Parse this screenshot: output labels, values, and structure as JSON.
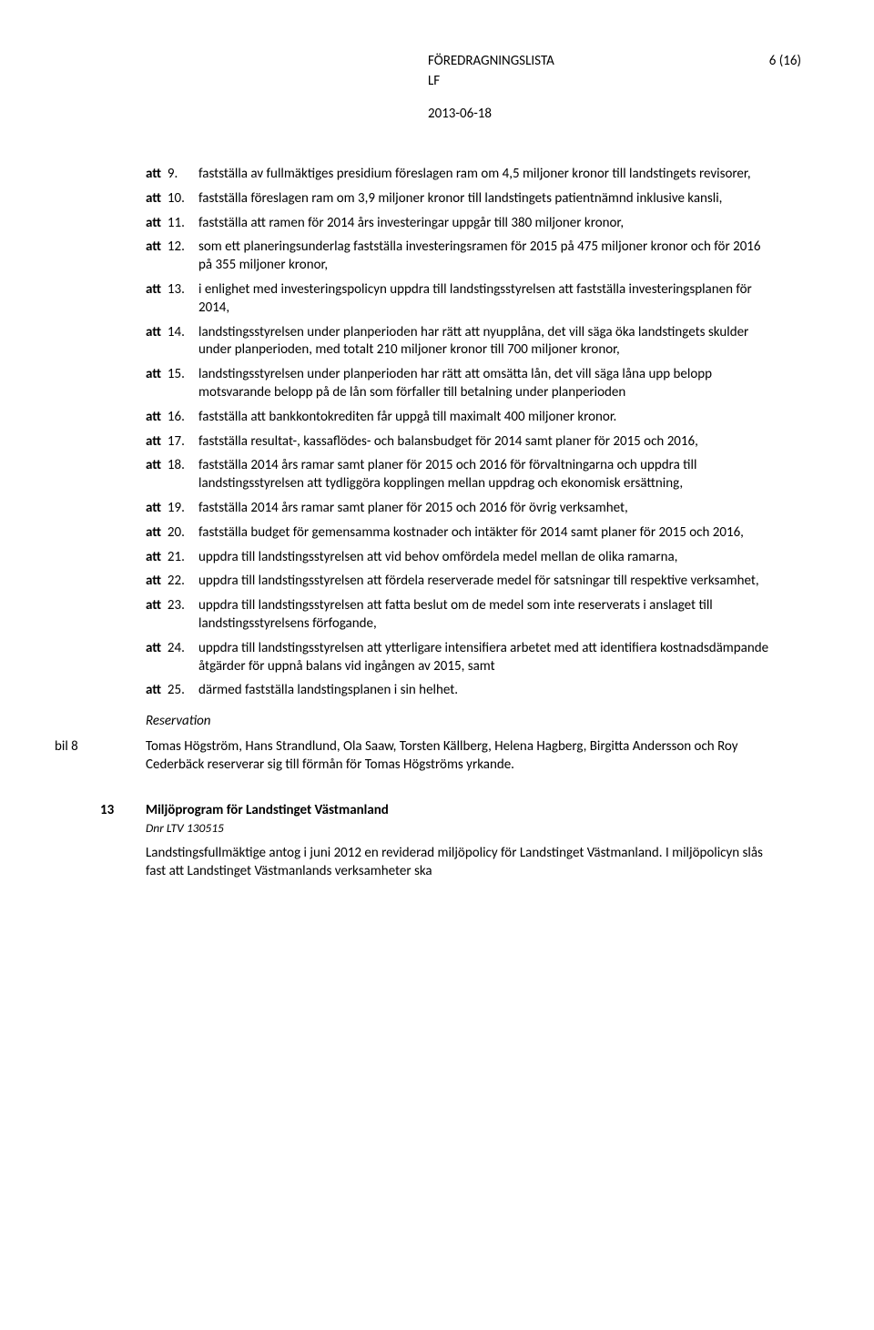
{
  "header": {
    "title": "FÖREDRAGNINGSLISTA",
    "pageinfo": "6 (16)",
    "lf": "LF",
    "date": "2013-06-18"
  },
  "att_items": [
    {
      "num": "9.",
      "text": "fastställa av fullmäktiges presidium föreslagen ram om 4,5 miljoner kronor till landstingets revisorer,"
    },
    {
      "num": "10.",
      "text": "fastställa föreslagen ram om 3,9 miljoner kronor till landstingets patientnämnd inklusive kansli,"
    },
    {
      "num": "11.",
      "text": "fastställa att ramen för 2014 års investeringar uppgår till 380 miljoner kronor,"
    },
    {
      "num": "12.",
      "text": "som ett planeringsunderlag fastställa investeringsramen för 2015 på 475 miljoner kronor och för 2016 på 355 miljoner kronor,"
    },
    {
      "num": "13.",
      "text": "i enlighet med investeringspolicyn uppdra till landstingsstyrelsen att fastställa investeringsplanen för 2014,"
    },
    {
      "num": "14.",
      "text": "landstingsstyrelsen under planperioden har rätt att nyupplåna, det vill säga öka landstingets skulder under planperioden, med totalt 210 miljoner kronor till 700 miljoner kronor,"
    },
    {
      "num": "15.",
      "text": "landstingsstyrelsen under planperioden har rätt att omsätta lån, det vill säga låna upp belopp motsvarande belopp på de lån som förfaller till betalning under planperioden"
    },
    {
      "num": "16.",
      "text": "fastställa att bankkontokrediten får uppgå till maximalt 400 miljoner kronor."
    },
    {
      "num": "17.",
      "text": "fastställa resultat-, kassaflödes- och balansbudget för 2014 samt planer för 2015 och 2016,"
    },
    {
      "num": "18.",
      "text": "fastställa 2014 års ramar samt planer för 2015 och 2016 för förvaltningarna och uppdra till landstingsstyrelsen att tydliggöra kopplingen mellan uppdrag och ekonomisk ersättning,"
    },
    {
      "num": "19.",
      "text": "fastställa 2014 års ramar samt planer för 2015 och 2016 för övrig verksamhet,"
    },
    {
      "num": "20.",
      "text": "fastställa budget för gemensamma kostnader och intäkter för 2014 samt planer för 2015 och 2016,"
    },
    {
      "num": "21.",
      "text": "uppdra till landstingsstyrelsen att vid behov omfördela medel mellan de olika ramarna,"
    },
    {
      "num": "22.",
      "text": "uppdra till landstingsstyrelsen att fördela reserverade medel för satsningar till respektive verksamhet,"
    },
    {
      "num": "23.",
      "text": "uppdra till landstingsstyrelsen att fatta beslut om de medel som inte reserverats i anslaget till landstingsstyrelsens förfogande,"
    },
    {
      "num": "24.",
      "text": "uppdra till landstingsstyrelsen att ytterligare intensifiera arbetet med att identifiera kostnadsdämpande åtgärder för uppnå balans vid ingången av 2015, samt"
    },
    {
      "num": "25.",
      "text": "därmed fastställa landstingsplanen i sin helhet."
    }
  ],
  "att_prefix": "att",
  "reservation": {
    "heading": "Reservation",
    "bil_label": "bil 8",
    "text": "Tomas Högström, Hans Strandlund, Ola Saaw, Torsten Källberg, Helena Hagberg, Birgitta Andersson och Roy Cederbäck reserverar sig till förmån för Tomas Högströms yrkande."
  },
  "section13": {
    "num": "13",
    "title": "Miljöprogram för Landstinget Västmanland",
    "dnr": "Dnr LTV 130515",
    "text": "Landstingsfullmäktige antog i juni 2012 en reviderad miljöpolicy för Landstinget Västmanland. I miljöpolicyn slås fast att Landstinget Västmanlands verksamheter ska"
  }
}
